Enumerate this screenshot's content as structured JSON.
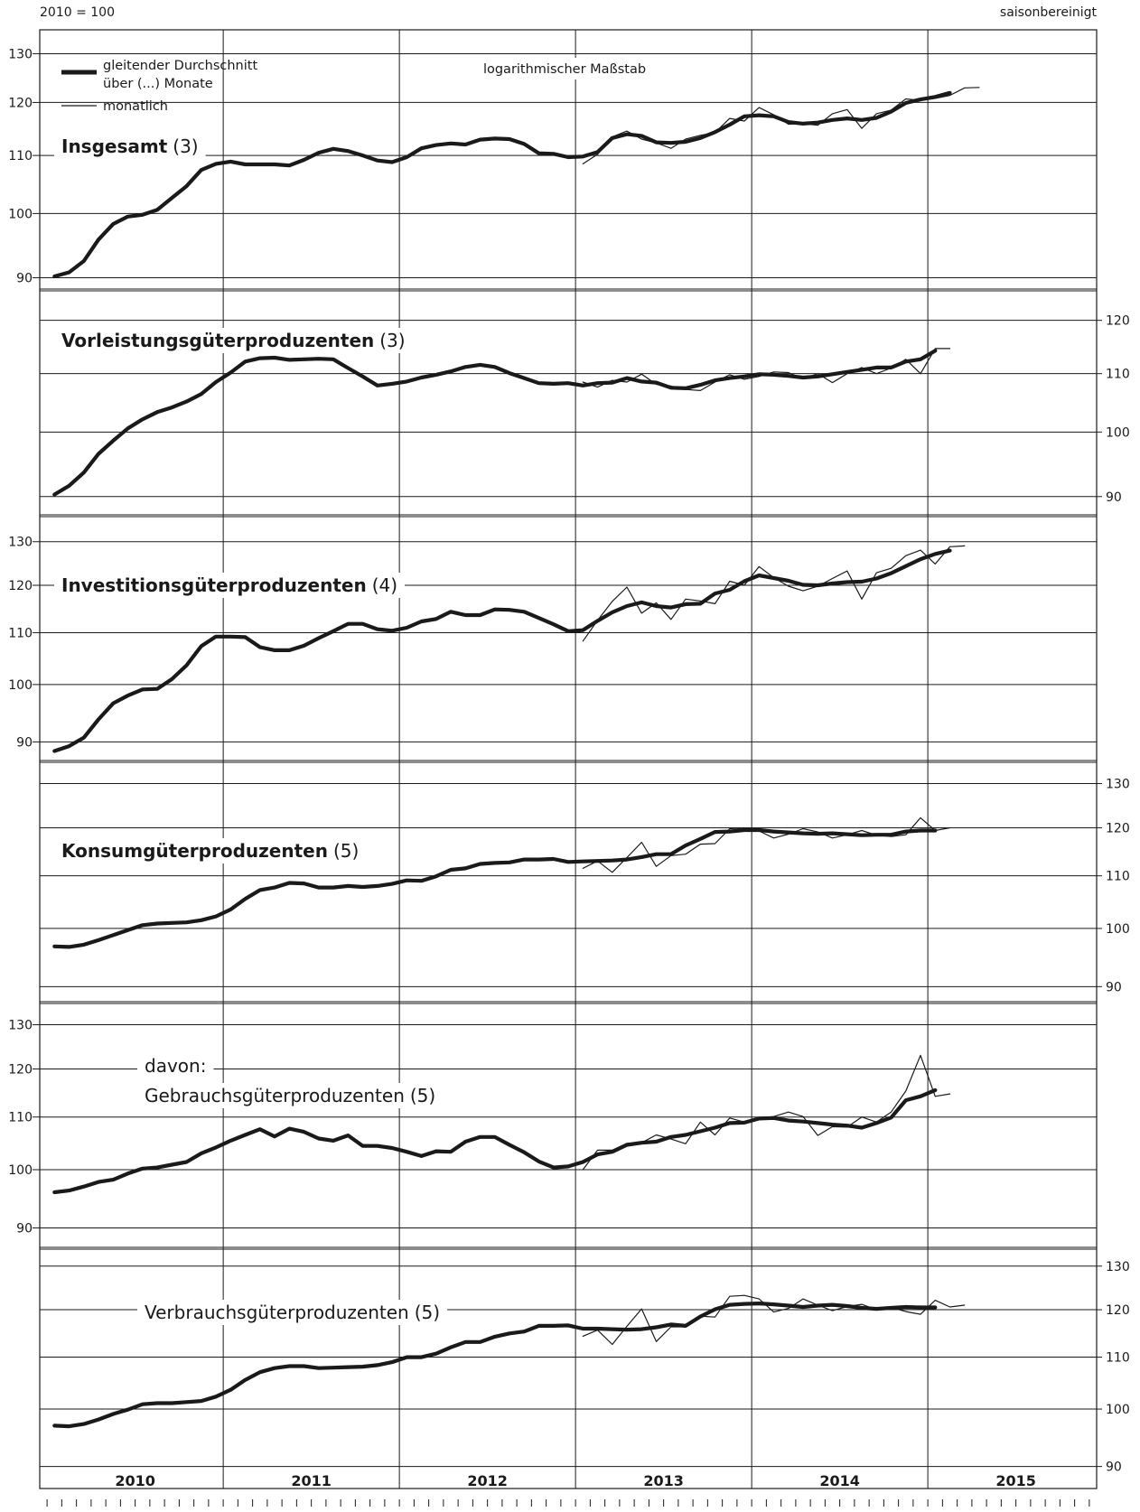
{
  "header": {
    "base": "2010 = 100",
    "adjustment": "saisonbereinigt",
    "scale_note": "logarithmischer Maßstab"
  },
  "legend": {
    "thick_line_1": "gleitender Durchschnitt",
    "thick_line_2": "über (...) Monate",
    "thin_line": "monatlich"
  },
  "years": [
    "2010",
    "2011",
    "2012",
    "2013",
    "2014",
    "2015"
  ],
  "chart_data": [
    {
      "type": "line",
      "title": "Insgesamt",
      "title_bold": true,
      "note": "(3)",
      "yscale": "log",
      "ylim": [
        89,
        134
      ],
      "yticks": [
        90,
        100,
        110,
        120,
        130
      ],
      "axis_side": "left",
      "series": [
        {
          "name": "gleitender Durchschnitt über (...) Monate",
          "style": "thick",
          "x_start": "2010-01",
          "values": [
            90.2,
            90.8,
            92.5,
            95.8,
            98.3,
            99.5,
            99.8,
            100.6,
            102.6,
            104.6,
            107.4,
            108.5,
            108.9,
            108.4,
            108.4,
            108.4,
            108.2,
            109.2,
            110.5,
            111.2,
            110.8,
            110.0,
            109.1,
            108.8,
            109.7,
            111.3,
            111.9,
            112.2,
            112.0,
            112.9,
            113.1,
            113.0,
            112.1,
            110.4,
            110.3,
            109.7,
            109.8,
            110.6,
            113.2,
            113.9,
            113.6,
            112.4,
            112.3,
            112.5,
            113.2,
            114.3,
            115.7,
            117.3,
            117.5,
            117.3,
            116.2,
            115.9,
            116.1,
            116.6,
            116.9,
            116.6,
            117.0,
            118.2,
            119.9,
            120.6,
            121.1,
            121.9
          ]
        },
        {
          "name": "monatlich",
          "style": "thin",
          "x_start": "2013-01",
          "values": [
            108.5,
            110.2,
            113.4,
            114.5,
            113.0,
            112.3,
            111.3,
            113.0,
            113.7,
            114.2,
            116.9,
            116.4,
            119.0,
            117.6,
            115.8,
            115.9,
            115.6,
            117.8,
            118.6,
            115.0,
            117.8,
            118.5,
            120.7,
            120.4,
            120.8,
            121.4,
            122.9,
            123.0
          ]
        }
      ]
    },
    {
      "type": "line",
      "title": "Vorleistungsgüterproduzenten",
      "title_bold": true,
      "note": "(3)",
      "yscale": "log",
      "ylim": [
        88,
        125
      ],
      "yticks": [
        90,
        100,
        110,
        120
      ],
      "axis_side": "right",
      "series": [
        {
          "name": "gleitender Durchschnitt über (...) Monate",
          "style": "thick",
          "x_start": "2010-01",
          "values": [
            90.3,
            91.6,
            93.6,
            96.5,
            98.6,
            100.6,
            102.1,
            103.3,
            104.1,
            105.1,
            106.4,
            108.5,
            110.2,
            112.2,
            112.8,
            112.9,
            112.5,
            112.6,
            112.7,
            112.6,
            111.0,
            109.5,
            107.9,
            108.2,
            108.6,
            109.3,
            109.8,
            110.4,
            111.2,
            111.6,
            111.2,
            110.1,
            109.2,
            108.3,
            108.2,
            108.3,
            107.9,
            108.3,
            108.4,
            109.2,
            108.6,
            108.4,
            107.5,
            107.4,
            108.0,
            108.8,
            109.2,
            109.5,
            109.9,
            109.8,
            109.6,
            109.3,
            109.5,
            109.9,
            110.3,
            110.7,
            111.1,
            111.1,
            112.2,
            112.6,
            114.2
          ]
        },
        {
          "name": "monatlich",
          "style": "thin",
          "x_start": "2013-01",
          "values": [
            108.5,
            107.6,
            108.8,
            108.5,
            109.9,
            108.1,
            107.8,
            107.2,
            107.0,
            108.5,
            109.8,
            109.0,
            109.5,
            110.3,
            110.2,
            109.1,
            110.0,
            108.4,
            110.0,
            111.1,
            110.0,
            111.0,
            112.6,
            110.0,
            114.6,
            114.6
          ]
        }
      ]
    },
    {
      "type": "line",
      "title": "Investitionsgüterproduzenten",
      "title_bold": true,
      "note": "(4)",
      "yscale": "log",
      "ylim": [
        87.7,
        135
      ],
      "yticks": [
        90,
        100,
        110,
        120,
        130
      ],
      "axis_side": "left",
      "series": [
        {
          "name": "gleitender Durchschnitt über (...) Monate",
          "style": "thick",
          "x_start": "2010-01",
          "values": [
            88.5,
            89.3,
            90.7,
            93.8,
            96.6,
            98.0,
            99.1,
            99.2,
            101.0,
            103.6,
            107.3,
            109.2,
            109.2,
            109.1,
            107.1,
            106.5,
            106.5,
            107.4,
            108.9,
            110.3,
            111.8,
            111.8,
            110.7,
            110.4,
            111.0,
            112.3,
            112.8,
            114.3,
            113.6,
            113.6,
            114.8,
            114.7,
            114.3,
            113.0,
            111.7,
            110.3,
            110.5,
            112.4,
            114.2,
            115.5,
            116.3,
            115.5,
            115.2,
            115.9,
            116.0,
            118.2,
            119.0,
            120.9,
            122.2,
            121.6,
            121.0,
            120.1,
            120.0,
            120.4,
            120.7,
            120.8,
            121.5,
            122.7,
            124.3,
            125.9,
            127.1,
            127.9
          ]
        },
        {
          "name": "monatlich",
          "style": "thin",
          "x_start": "2013-01",
          "values": [
            108.3,
            112.5,
            116.5,
            119.6,
            114.0,
            116.2,
            112.7,
            117.0,
            116.6,
            116.0,
            120.9,
            120.0,
            124.2,
            121.7,
            119.8,
            118.8,
            119.8,
            121.5,
            123.2,
            117.0,
            122.8,
            123.8,
            126.7,
            128.0,
            124.8,
            128.8,
            129.0
          ]
        }
      ]
    },
    {
      "type": "line",
      "title": "Konsumgüterproduzenten",
      "title_bold": true,
      "note": "(5)",
      "yscale": "log",
      "ylim": [
        88.3,
        134
      ],
      "yticks": [
        90,
        100,
        110,
        120,
        130
      ],
      "axis_side": "right",
      "series": [
        {
          "name": "gleitender Durchschnitt über (...) Monate",
          "style": "thick",
          "x_start": "2010-01",
          "values": [
            96.8,
            96.7,
            97.1,
            97.9,
            98.8,
            99.7,
            100.6,
            100.9,
            101.0,
            101.1,
            101.5,
            102.2,
            103.5,
            105.5,
            107.2,
            107.7,
            108.6,
            108.5,
            107.7,
            107.7,
            108.0,
            107.8,
            108.0,
            108.4,
            109.1,
            109.0,
            109.9,
            111.2,
            111.5,
            112.4,
            112.6,
            112.7,
            113.3,
            113.3,
            113.4,
            112.8,
            112.9,
            113.0,
            113.1,
            113.3,
            113.8,
            114.4,
            114.4,
            116.2,
            117.6,
            119.1,
            119.2,
            119.5,
            119.5,
            119.2,
            119.0,
            118.8,
            118.7,
            118.8,
            118.6,
            118.4,
            118.5,
            118.5,
            119.2,
            119.4,
            119.4
          ]
        },
        {
          "name": "monatlich",
          "style": "thin",
          "x_start": "2013-01",
          "values": [
            111.5,
            113.0,
            110.7,
            113.7,
            116.9,
            111.9,
            114.1,
            114.4,
            116.5,
            116.6,
            119.8,
            120.0,
            119.3,
            117.8,
            118.6,
            119.8,
            119.1,
            117.8,
            118.5,
            119.4,
            118.4,
            118.1,
            118.5,
            122.2,
            119.4,
            120.0
          ]
        }
      ]
    },
    {
      "type": "line",
      "title": "Gebrauchsgüterproduzenten",
      "title_bold": false,
      "prefix": "davon:",
      "note": "(5)",
      "yscale": "log",
      "ylim": [
        87.6,
        134
      ],
      "yticks": [
        90,
        100,
        110,
        120,
        130
      ],
      "axis_side": "left",
      "series": [
        {
          "name": "gleitender Durchschnitt über (...) Monate",
          "style": "thick",
          "x_start": "2010-01",
          "values": [
            96.0,
            96.3,
            97.0,
            97.8,
            98.2,
            99.3,
            100.2,
            100.4,
            100.9,
            101.4,
            103.0,
            104.1,
            105.4,
            106.5,
            107.6,
            106.2,
            107.7,
            107.1,
            105.8,
            105.4,
            106.4,
            104.4,
            104.4,
            104.0,
            103.3,
            102.5,
            103.4,
            103.3,
            105.2,
            106.1,
            106.1,
            104.6,
            103.2,
            101.5,
            100.4,
            100.6,
            101.4,
            102.8,
            103.3,
            104.6,
            105.0,
            105.2,
            106.1,
            106.5,
            107.2,
            107.9,
            108.8,
            108.9,
            109.7,
            109.8,
            109.3,
            109.1,
            108.8,
            108.5,
            108.3,
            107.9,
            108.8,
            109.9,
            113.4,
            114.2,
            115.5
          ]
        },
        {
          "name": "monatlich",
          "style": "thin",
          "x_start": "2013-01",
          "values": [
            100.0,
            103.6,
            103.6,
            104.9,
            105.0,
            106.5,
            105.7,
            104.8,
            109.0,
            106.5,
            109.8,
            109.0,
            109.8,
            110.1,
            111.0,
            110.1,
            106.4,
            108.1,
            108.0,
            110.0,
            109.0,
            111.0,
            115.3,
            123.0,
            114.2,
            114.7
          ]
        }
      ]
    },
    {
      "type": "line",
      "title": "Verbrauchsgüterproduzenten",
      "title_bold": false,
      "note": "(5)",
      "yscale": "log",
      "ylim": [
        87.3,
        133
      ],
      "yticks": [
        90,
        100,
        110,
        120,
        130
      ],
      "axis_side": "right",
      "series": [
        {
          "name": "gleitender Durchschnitt über (...) Monate",
          "style": "thick",
          "x_start": "2010-01",
          "values": [
            97.0,
            96.9,
            97.3,
            98.1,
            99.1,
            99.9,
            100.9,
            101.1,
            101.1,
            101.3,
            101.5,
            102.3,
            103.6,
            105.5,
            107.0,
            107.8,
            108.2,
            108.2,
            107.8,
            107.9,
            108.0,
            108.1,
            108.4,
            109.0,
            110.0,
            110.0,
            110.7,
            112.0,
            113.1,
            113.1,
            114.2,
            114.9,
            115.3,
            116.5,
            116.5,
            116.6,
            115.9,
            115.9,
            115.8,
            115.7,
            115.8,
            116.2,
            116.8,
            116.5,
            118.5,
            120.1,
            121.1,
            121.3,
            121.4,
            121.2,
            120.9,
            120.6,
            120.9,
            121.1,
            120.8,
            120.4,
            120.2,
            120.4,
            120.6,
            120.5,
            120.5
          ]
        },
        {
          "name": "monatlich",
          "style": "thin",
          "x_start": "2013-01",
          "values": [
            114.3,
            115.6,
            112.6,
            116.4,
            120.2,
            113.2,
            116.3,
            116.3,
            118.6,
            118.4,
            123.0,
            123.2,
            122.4,
            119.5,
            120.3,
            122.4,
            121.0,
            119.8,
            120.7,
            121.2,
            120.0,
            120.5,
            119.6,
            119.0,
            122.1,
            120.6,
            121.0
          ]
        }
      ]
    }
  ]
}
